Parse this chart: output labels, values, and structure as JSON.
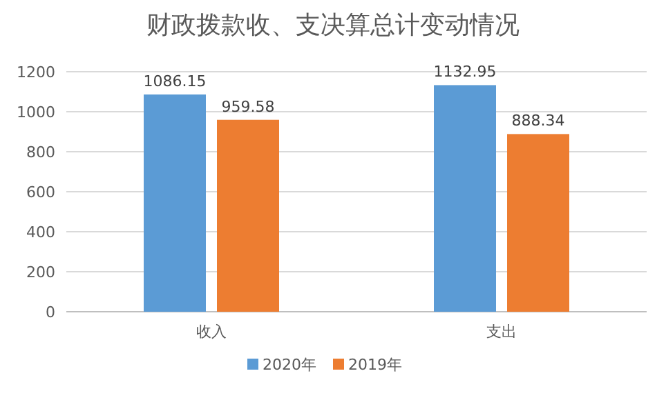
{
  "chart_data": {
    "type": "bar",
    "title": "财政拨款收、支决算总计变动情况",
    "categories": [
      "收入",
      "支出"
    ],
    "series": [
      {
        "name": "2020年",
        "color": "#5b9bd5",
        "values": [
          1086.15,
          1132.95
        ]
      },
      {
        "name": "2019年",
        "color": "#ed7d31",
        "values": [
          959.58,
          888.34
        ]
      }
    ],
    "ylim": [
      0,
      1200
    ],
    "yticks": [
      0,
      200,
      400,
      600,
      800,
      1000,
      1200
    ],
    "grid": "y",
    "legend": "bottom",
    "data_labels": true
  }
}
